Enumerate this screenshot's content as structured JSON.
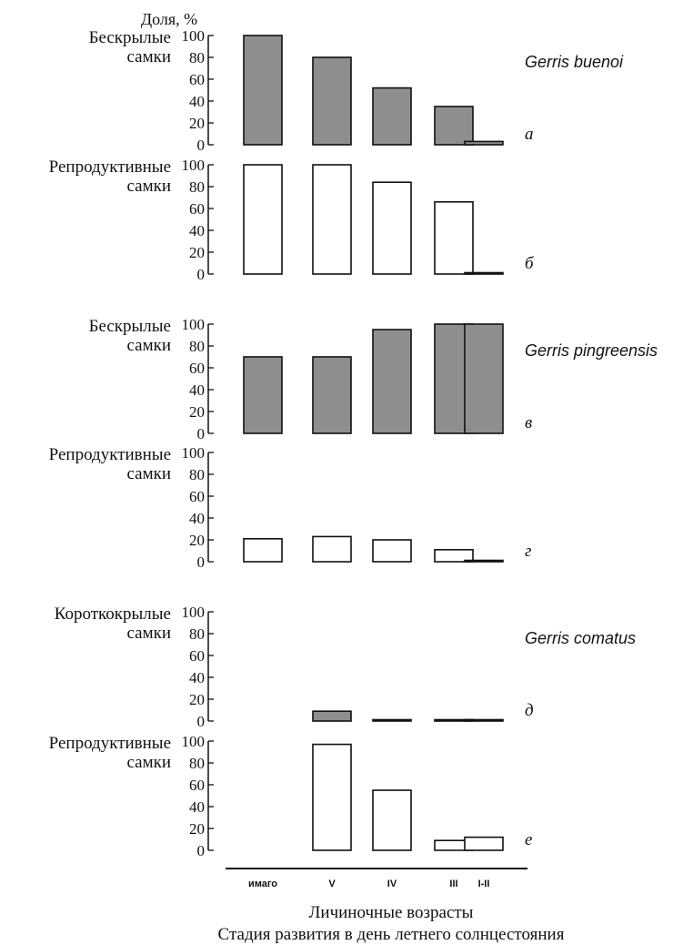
{
  "y_axis_title": "Доля, %",
  "x_title": "Личиночные возрасты",
  "x_subtitle": "Стадия развития в день летнего солнцестояния",
  "colors": {
    "filled": "#8e8e8e",
    "empty": "#ffffff",
    "stroke": "#111111"
  },
  "chart_data": {
    "type": "bar",
    "categories": [
      "имаго",
      "V",
      "IV",
      "III",
      "I-II"
    ],
    "yticks": [
      0,
      20,
      40,
      60,
      80,
      100
    ],
    "ylim": [
      0,
      100
    ],
    "panels": [
      {
        "letter": "а",
        "label_line1": "Бескрылые",
        "label_line2": "самки",
        "species": "Gerris buenoi",
        "fill": "filled",
        "values": [
          100,
          80,
          52,
          35,
          3
        ]
      },
      {
        "letter": "б",
        "label_line1": "Репродуктивные",
        "label_line2": "самки",
        "species": "",
        "fill": "empty",
        "values": [
          100,
          100,
          84,
          66,
          1
        ]
      },
      {
        "letter": "в",
        "label_line1": "Бескрылые",
        "label_line2": "самки",
        "species": "Gerris pingreensis",
        "fill": "filled",
        "values": [
          70,
          70,
          95,
          100,
          100
        ]
      },
      {
        "letter": "г",
        "label_line1": "Репродуктивные",
        "label_line2": "самки",
        "species": "",
        "fill": "empty",
        "values": [
          21,
          23,
          20,
          11,
          1
        ]
      },
      {
        "letter": "д",
        "label_line1": "Короткокрылые",
        "label_line2": "самки",
        "species": "Gerris comatus",
        "fill": "filled",
        "values": [
          null,
          9,
          1,
          1,
          1
        ]
      },
      {
        "letter": "е",
        "label_line1": "Репродуктивные",
        "label_line2": "самки",
        "species": "",
        "fill": "empty",
        "values": [
          null,
          97,
          55,
          9,
          12
        ]
      }
    ]
  }
}
